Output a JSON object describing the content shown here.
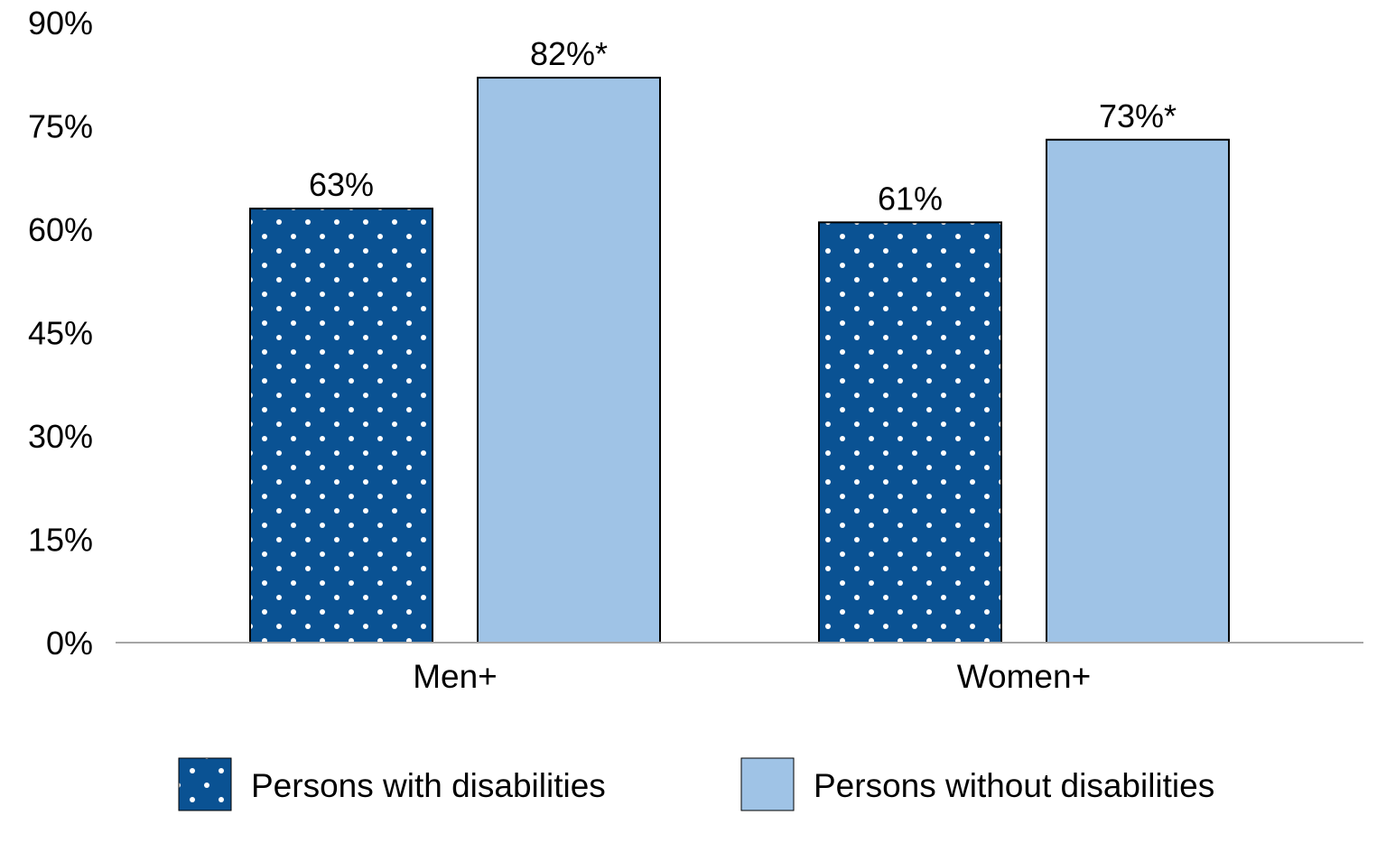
{
  "chart_data": {
    "type": "bar",
    "title": "",
    "xlabel": "",
    "ylabel": "",
    "categories": [
      "Men+",
      "Women+"
    ],
    "series": [
      {
        "name": "Persons with disabilities",
        "values": [
          63,
          61
        ],
        "labels": [
          "63%",
          "61%"
        ],
        "color": "#0a5293",
        "pattern": "white-dots"
      },
      {
        "name": "Persons without disabilities",
        "values": [
          82,
          73
        ],
        "labels": [
          "82%*",
          "73%*"
        ],
        "color": "#9fc3e6",
        "pattern": "solid"
      }
    ],
    "ylim": [
      0,
      90
    ],
    "yticks": [
      0,
      15,
      30,
      45,
      60,
      75,
      90
    ],
    "ytick_labels": [
      "0%",
      "15%",
      "30%",
      "45%",
      "60%",
      "75%",
      "90%"
    ],
    "grid": false,
    "legend_position": "bottom"
  },
  "colors": {
    "axis": "#a6a6a6",
    "bar_border": "#000000",
    "dot": "#ffffff"
  }
}
